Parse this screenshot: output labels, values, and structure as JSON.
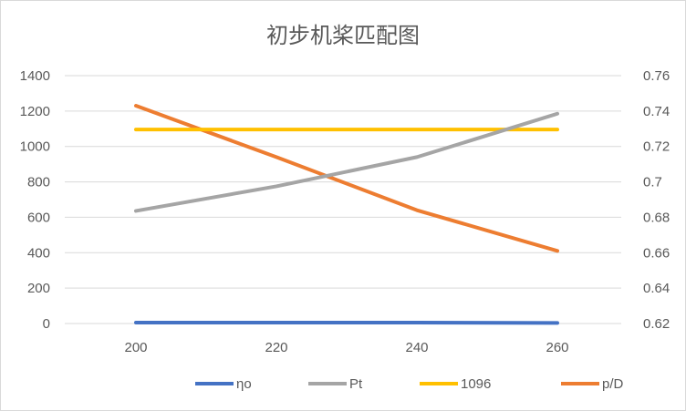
{
  "chart_data": {
    "type": "line",
    "title": "初步机桨匹配图",
    "x": [
      "200",
      "220",
      "240",
      "260"
    ],
    "y_axis_left": {
      "ylim": [
        0,
        1400
      ],
      "ticks": [
        "0",
        "200",
        "400",
        "600",
        "800",
        "1000",
        "1200",
        "1400"
      ]
    },
    "y_axis_right": {
      "ylim": [
        0.62,
        0.76
      ],
      "ticks": [
        "0.62",
        "0.64",
        "0.66",
        "0.68",
        "0.7",
        "0.72",
        "0.74",
        "0.76"
      ]
    },
    "grid": "horizontal",
    "legend_position": "bottom",
    "series": [
      {
        "name": "ηo",
        "axis": "left",
        "color": "#4472C4",
        "values": [
          5,
          5,
          5,
          3
        ]
      },
      {
        "name": "Pt",
        "axis": "left",
        "color": "#A5A5A5",
        "values": [
          636,
          775,
          940,
          1185
        ]
      },
      {
        "name": "1096",
        "axis": "left",
        "color": "#FFC000",
        "values": [
          1096,
          1096,
          1096,
          1096
        ]
      },
      {
        "name": "p/D",
        "axis": "right",
        "color": "#ED7D31",
        "values": [
          0.743,
          0.714,
          0.684,
          0.661
        ]
      }
    ]
  }
}
